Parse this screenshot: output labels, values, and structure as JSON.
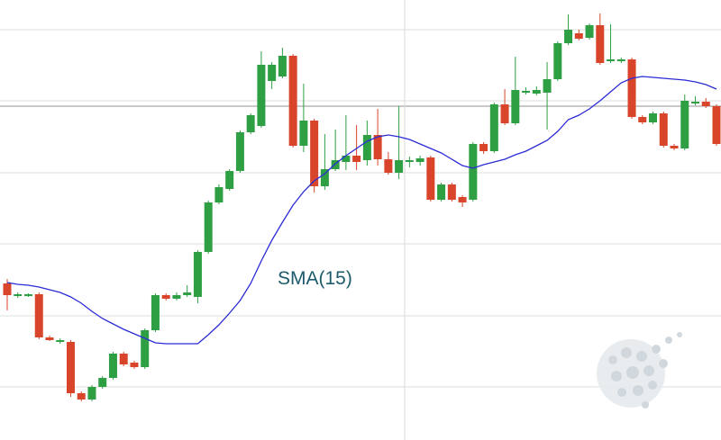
{
  "chart_data": {
    "type": "candlestick",
    "up_color": "#2ea043",
    "down_color": "#d9452b",
    "open": [
      174,
      160,
      160,
      162,
      114,
      109,
      109,
      52,
      45,
      59,
      69,
      96,
      86,
      81,
      122,
      161,
      157,
      161,
      159,
      209,
      264,
      279,
      299,
      342,
      349,
      399,
      404,
      427,
      327,
      355,
      282,
      301,
      309,
      316,
      311,
      339,
      312,
      297,
      309,
      309,
      314,
      267,
      284,
      270,
      267,
      329,
      321,
      373,
      352,
      386,
      385,
      386,
      401,
      441,
      452,
      447,
      461,
      421,
      421,
      423,
      359,
      353,
      363,
      327,
      324,
      374,
      376,
      371
    ],
    "high": [
      179,
      164,
      163,
      164,
      116,
      113,
      111,
      54,
      61,
      71,
      98,
      98,
      88,
      124,
      163,
      163,
      164,
      172,
      211,
      266,
      284,
      301,
      344,
      363,
      432,
      420,
      436,
      429,
      396,
      357,
      340,
      345,
      361,
      350,
      355,
      368,
      320,
      371,
      315,
      316,
      316,
      286,
      286,
      272,
      331,
      331,
      375,
      390,
      426,
      392,
      393,
      420,
      443,
      473,
      456,
      463,
      474,
      462,
      425,
      425,
      361,
      365,
      365,
      329,
      384,
      382,
      380,
      373
    ],
    "low": [
      144,
      158,
      159,
      112,
      110,
      107,
      48,
      43,
      43,
      57,
      67,
      82,
      79,
      79,
      120,
      155,
      155,
      159,
      152,
      207,
      262,
      277,
      297,
      340,
      347,
      390,
      402,
      325,
      320,
      275,
      278,
      299,
      300,
      300,
      305,
      305,
      295,
      290,
      303,
      305,
      265,
      265,
      265,
      259,
      265,
      318,
      319,
      350,
      350,
      384,
      383,
      345,
      399,
      439,
      444,
      445,
      417,
      419,
      419,
      357,
      351,
      351,
      325,
      322,
      322,
      372,
      369,
      327
    ],
    "close": [
      161,
      162,
      162,
      114,
      111,
      111,
      52,
      45,
      59,
      69,
      96,
      84,
      81,
      122,
      161,
      157,
      161,
      164,
      209,
      264,
      281,
      299,
      342,
      361,
      417,
      417,
      427,
      327,
      355,
      282,
      301,
      311,
      316,
      309,
      339,
      312,
      297,
      311,
      311,
      313,
      267,
      284,
      267,
      264,
      329,
      321,
      373,
      352,
      389,
      388,
      389,
      401,
      441,
      456,
      446,
      461,
      419,
      423,
      423,
      359,
      353,
      363,
      327,
      324,
      377,
      376,
      371,
      329
    ],
    "series": [
      {
        "name": "SMA(15)",
        "color": "#2b2bd6",
        "values": [
          175,
          173,
          172,
          170,
          167,
          164,
          159,
          152,
          143,
          135,
          129,
          123,
          118,
          113,
          108,
          107,
          107,
          107,
          107,
          117,
          128,
          141,
          155,
          174,
          199,
          222,
          242,
          261,
          276,
          288,
          296,
          307,
          316,
          324,
          332,
          337,
          339,
          337,
          334,
          329,
          324,
          319,
          312,
          305,
          302,
          306,
          309,
          312,
          317,
          321,
          327,
          333,
          343,
          356,
          361,
          368,
          377,
          387,
          397,
          402,
          404,
          403,
          402,
          401,
          400,
          398,
          395,
          390
        ]
      }
    ],
    "price_line": 371,
    "ylim": [
      0,
      489
    ],
    "yticks": [
      59,
      138,
      218,
      297,
      377,
      456
    ],
    "grid": true
  }
}
